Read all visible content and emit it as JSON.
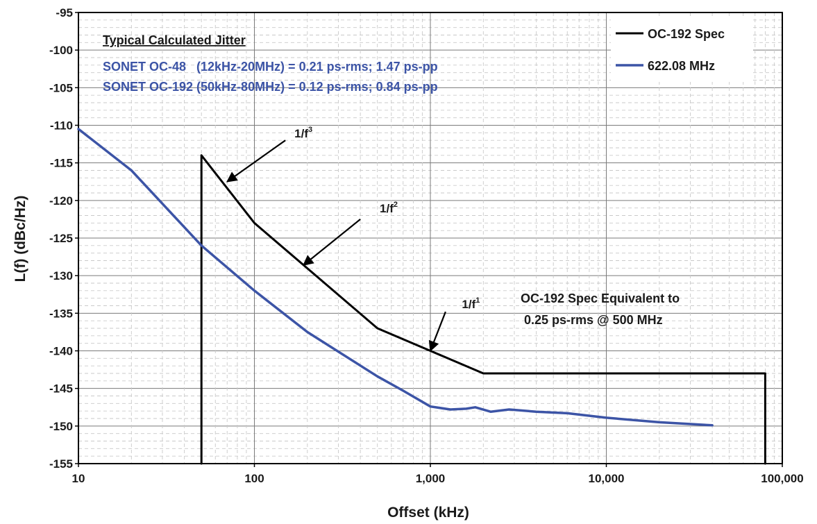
{
  "chart_data": {
    "type": "line",
    "x_scale": "log",
    "xlabel": "Offset (kHz)",
    "ylabel": "L(f) (dBc/Hz)",
    "xlim": [
      10,
      100000
    ],
    "ylim": [
      -155,
      -95
    ],
    "grid": true,
    "legend_position": "top-right",
    "x_ticks": [
      {
        "value": 10,
        "label": "10"
      },
      {
        "value": 100,
        "label": "100"
      },
      {
        "value": 1000,
        "label": "1,000"
      },
      {
        "value": 10000,
        "label": "10,000"
      },
      {
        "value": 100000,
        "label": "100,000"
      }
    ],
    "y_ticks": [
      -95,
      -100,
      -105,
      -110,
      -115,
      -120,
      -125,
      -130,
      -135,
      -140,
      -145,
      -150,
      -155
    ],
    "series": [
      {
        "name": "OC-192 Spec",
        "color": "#000000",
        "points": [
          [
            50,
            -155
          ],
          [
            50,
            -114
          ],
          [
            100,
            -123
          ],
          [
            500,
            -137
          ],
          [
            2000,
            -143
          ],
          [
            80000,
            -143
          ],
          [
            80000,
            -155
          ]
        ]
      },
      {
        "name": "622.08 MHz",
        "color": "#3c54a6",
        "points": [
          [
            10,
            -110.5
          ],
          [
            20,
            -116
          ],
          [
            50,
            -126
          ],
          [
            100,
            -132
          ],
          [
            200,
            -137.5
          ],
          [
            500,
            -143.4
          ],
          [
            700,
            -145.3
          ],
          [
            1000,
            -147.4
          ],
          [
            1300,
            -147.8
          ],
          [
            1600,
            -147.7
          ],
          [
            1800,
            -147.5
          ],
          [
            2200,
            -148.1
          ],
          [
            2800,
            -147.8
          ],
          [
            4000,
            -148.1
          ],
          [
            6000,
            -148.3
          ],
          [
            10000,
            -148.9
          ],
          [
            20000,
            -149.5
          ],
          [
            40000,
            -149.9
          ]
        ]
      }
    ],
    "annotations": [
      {
        "id": "slope-f3",
        "base": "1/f",
        "sup": "3",
        "text_at": [
          190,
          -111.6
        ],
        "arrow_from": [
          150,
          -112
        ],
        "arrow_to": [
          70,
          -117.5
        ]
      },
      {
        "id": "slope-f2",
        "base": "1/f",
        "sup": "2",
        "text_at": [
          580,
          -121.6
        ],
        "arrow_from": [
          400,
          -122.5
        ],
        "arrow_to": [
          190,
          -128.6
        ]
      },
      {
        "id": "slope-f1",
        "base": "1/f",
        "sup": "1",
        "text_at": [
          1700,
          -134.3
        ],
        "arrow_from": [
          1220,
          -134.8
        ],
        "arrow_to": [
          1000,
          -140
        ]
      }
    ],
    "spec_note": [
      "OC-192 Spec Equivalent to",
      "0.25 ps-rms @ 500 MHz"
    ],
    "jitter": {
      "title": "Typical Calculated Jitter",
      "lines": [
        "SONET OC-48   (12kHz-20MHz) = 0.21 ps-rms; 1.47 ps-pp",
        "SONET OC-192 (50kHz-80MHz) = 0.12 ps-rms; 0.84 ps-pp"
      ]
    }
  }
}
